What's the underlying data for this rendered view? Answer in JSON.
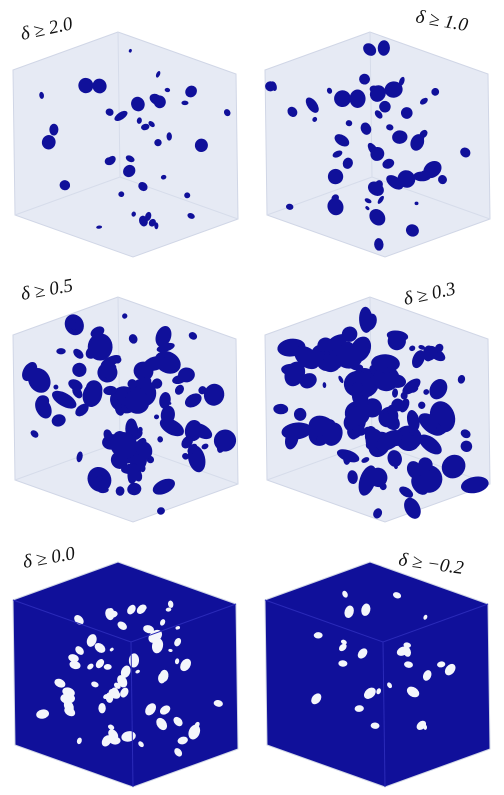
{
  "panels": [
    {
      "label": "δ ≥ 2.0"
    },
    {
      "label": "δ ≥ 1.0"
    },
    {
      "label": "δ ≥ 0.5"
    },
    {
      "label": "δ ≥ 0.3"
    },
    {
      "label": "δ ≥ 0.0"
    },
    {
      "label": "δ ≥ −0.2"
    }
  ]
}
